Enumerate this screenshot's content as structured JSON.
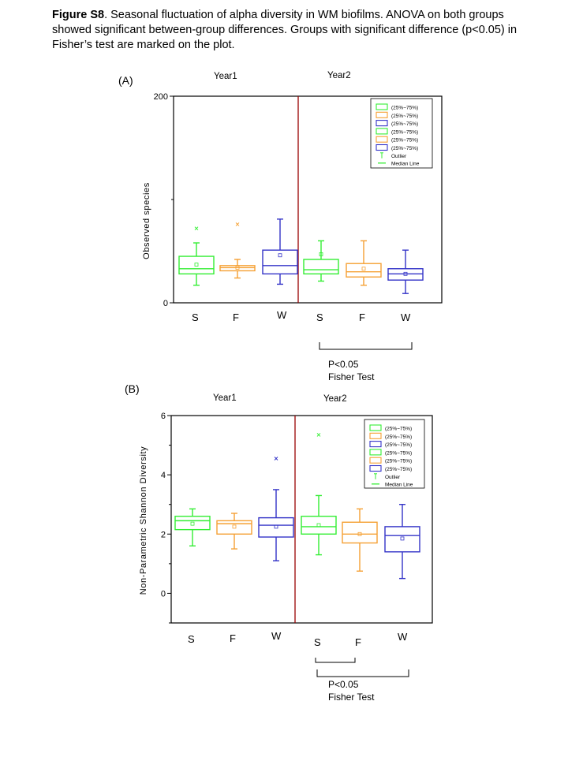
{
  "caption": {
    "label": "Figure S8",
    "text": ". Seasonal fluctuation of alpha diversity in WM biofilms. ANOVA on both groups showed significant between-group differences. Groups with significant difference (p<0.05) in Fisher’s test are marked on the plot."
  },
  "colors": {
    "S": "#33ee33",
    "F": "#f5a033",
    "W": "#3434c8",
    "divider": "#990000"
  },
  "chart_data": [
    {
      "type": "box",
      "panel_label": "(A)",
      "ylabel": "Observed species",
      "year_labels": [
        "Year1",
        "Year2"
      ],
      "ylim": [
        0,
        200
      ],
      "yticks": [
        "0",
        "200"
      ],
      "ytick_values": [
        0,
        200
      ],
      "categories": [
        "S",
        "F",
        "W",
        "S",
        "F",
        "W"
      ],
      "series_colors": [
        "S",
        "F",
        "W",
        "S",
        "F",
        "W"
      ],
      "boxes": [
        {
          "group": "Year1",
          "season": "S",
          "q1": 28,
          "median": 33,
          "q3": 45,
          "whisker_low": 17,
          "whisker_high": 58,
          "mean": 37,
          "outliers": [
            72
          ]
        },
        {
          "group": "Year1",
          "season": "F",
          "q1": 31,
          "median": 34,
          "q3": 36,
          "whisker_low": 24,
          "whisker_high": 42,
          "mean": 34,
          "outliers": [
            76
          ]
        },
        {
          "group": "Year1",
          "season": "W",
          "q1": 28,
          "median": 36,
          "q3": 51,
          "whisker_low": 18,
          "whisker_high": 81,
          "mean": 46,
          "outliers": []
        },
        {
          "group": "Year2",
          "season": "S",
          "q1": 28,
          "median": 32,
          "q3": 42,
          "whisker_low": 21,
          "whisker_high": 60,
          "mean": 47,
          "outliers": []
        },
        {
          "group": "Year2",
          "season": "F",
          "q1": 25,
          "median": 30,
          "q3": 38,
          "whisker_low": 17,
          "whisker_high": 60,
          "mean": 33,
          "outliers": []
        },
        {
          "group": "Year2",
          "season": "W",
          "q1": 22,
          "median": 28,
          "q3": 33,
          "whisker_low": 9,
          "whisker_high": 51,
          "mean": 28,
          "outliers": []
        }
      ],
      "legend": {
        "entries": [
          "(25%~75%)",
          "(25%~75%)",
          "(25%~75%)",
          "(25%~75%)",
          "(25%~75%)",
          "(25%~75%)"
        ],
        "entry_colors": [
          "S",
          "F",
          "W",
          "S",
          "F",
          "W"
        ],
        "outlier_label": "Outlier",
        "median_label": "Median Line",
        "placement": "top-right"
      },
      "significance": {
        "from": 3,
        "to": 5,
        "label": "P<0.05",
        "test": "Fisher Test"
      }
    },
    {
      "type": "box",
      "panel_label": "(B)",
      "ylabel": "Non-Parametric Shannon Diversity",
      "year_labels": [
        "Year1",
        "Year2"
      ],
      "ylim": [
        -1,
        6
      ],
      "yticks": [
        "0",
        "2",
        "4",
        "6"
      ],
      "ytick_values": [
        0,
        2,
        4,
        6
      ],
      "categories": [
        "S",
        "F",
        "W",
        "S",
        "F",
        "W"
      ],
      "series_colors": [
        "S",
        "F",
        "W",
        "S",
        "F",
        "W"
      ],
      "boxes": [
        {
          "group": "Year1",
          "season": "S",
          "q1": 2.15,
          "median": 2.45,
          "q3": 2.6,
          "whisker_low": 1.6,
          "whisker_high": 2.85,
          "mean": 2.35,
          "outliers": []
        },
        {
          "group": "Year1",
          "season": "F",
          "q1": 2.0,
          "median": 2.35,
          "q3": 2.45,
          "whisker_low": 1.5,
          "whisker_high": 2.7,
          "mean": 2.25,
          "outliers": []
        },
        {
          "group": "Year1",
          "season": "W",
          "q1": 1.9,
          "median": 2.3,
          "q3": 2.55,
          "whisker_low": 1.1,
          "whisker_high": 3.5,
          "mean": 2.25,
          "outliers": [
            4.55
          ]
        },
        {
          "group": "Year2",
          "season": "S",
          "q1": 2.0,
          "median": 2.25,
          "q3": 2.6,
          "whisker_low": 1.3,
          "whisker_high": 3.3,
          "mean": 2.3,
          "outliers": [
            5.35
          ]
        },
        {
          "group": "Year2",
          "season": "F",
          "q1": 1.7,
          "median": 2.0,
          "q3": 2.4,
          "whisker_low": 0.75,
          "whisker_high": 2.85,
          "mean": 2.0,
          "outliers": []
        },
        {
          "group": "Year2",
          "season": "W",
          "q1": 1.4,
          "median": 1.95,
          "q3": 2.25,
          "whisker_low": 0.5,
          "whisker_high": 3.0,
          "mean": 1.85,
          "outliers": []
        }
      ],
      "legend": {
        "entries": [
          "(25%~75%)",
          "(25%~75%)",
          "(25%~75%)",
          "(25%~75%)",
          "(25%~75%)",
          "(25%~75%)"
        ],
        "entry_colors": [
          "S",
          "F",
          "W",
          "S",
          "F",
          "W"
        ],
        "outlier_label": "Outlier",
        "median_label": "Median Line",
        "placement": "top-right"
      },
      "significance": {
        "from": 3,
        "to": 5,
        "label": "P<0.05",
        "test": "Fisher Test",
        "secondary": {
          "from": 3,
          "to": 4
        }
      }
    }
  ]
}
